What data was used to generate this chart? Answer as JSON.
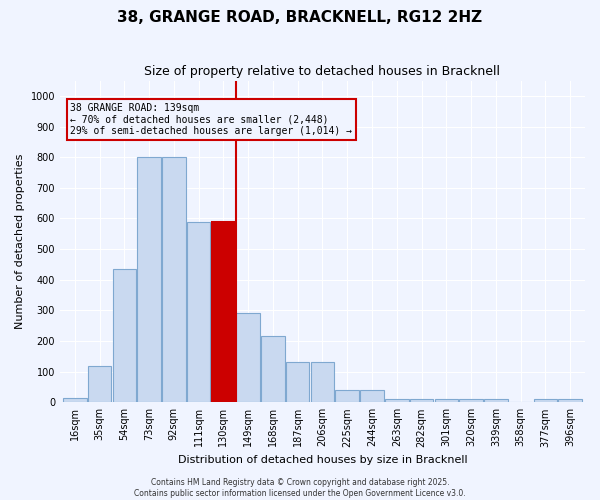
{
  "title": "38, GRANGE ROAD, BRACKNELL, RG12 2HZ",
  "subtitle": "Size of property relative to detached houses in Bracknell",
  "xlabel": "Distribution of detached houses by size in Bracknell",
  "ylabel": "Number of detached properties",
  "annotation_line1": "38 GRANGE ROAD: 139sqm",
  "annotation_line2": "← 70% of detached houses are smaller (2,448)",
  "annotation_line3": "29% of semi-detached houses are larger (1,014) →",
  "bins": [
    "16sqm",
    "35sqm",
    "54sqm",
    "73sqm",
    "92sqm",
    "111sqm",
    "130sqm",
    "149sqm",
    "168sqm",
    "187sqm",
    "206sqm",
    "225sqm",
    "244sqm",
    "263sqm",
    "282sqm",
    "301sqm",
    "320sqm",
    "339sqm",
    "358sqm",
    "377sqm",
    "396sqm"
  ],
  "values": [
    15,
    120,
    435,
    800,
    800,
    590,
    590,
    290,
    215,
    130,
    130,
    40,
    40,
    10,
    10,
    10,
    10,
    10,
    0,
    10,
    10
  ],
  "highlight_index": 6,
  "bar_color": "#c9d9f0",
  "bar_edge_color": "#7fa8d0",
  "highlight_color": "#cc0000",
  "highlight_edge_color": "#cc0000",
  "vline_x": 6.5,
  "vline_color": "#cc0000",
  "ylim": [
    0,
    1050
  ],
  "yticks": [
    0,
    100,
    200,
    300,
    400,
    500,
    600,
    700,
    800,
    900,
    1000
  ],
  "bg_color": "#f0f4ff",
  "grid_color": "#ffffff",
  "annotation_box_color": "#cc0000",
  "title_fontsize": 11,
  "subtitle_fontsize": 9,
  "axis_fontsize": 8,
  "tick_fontsize": 7,
  "footer_line1": "Contains HM Land Registry data © Crown copyright and database right 2025.",
  "footer_line2": "Contains public sector information licensed under the Open Government Licence v3.0."
}
